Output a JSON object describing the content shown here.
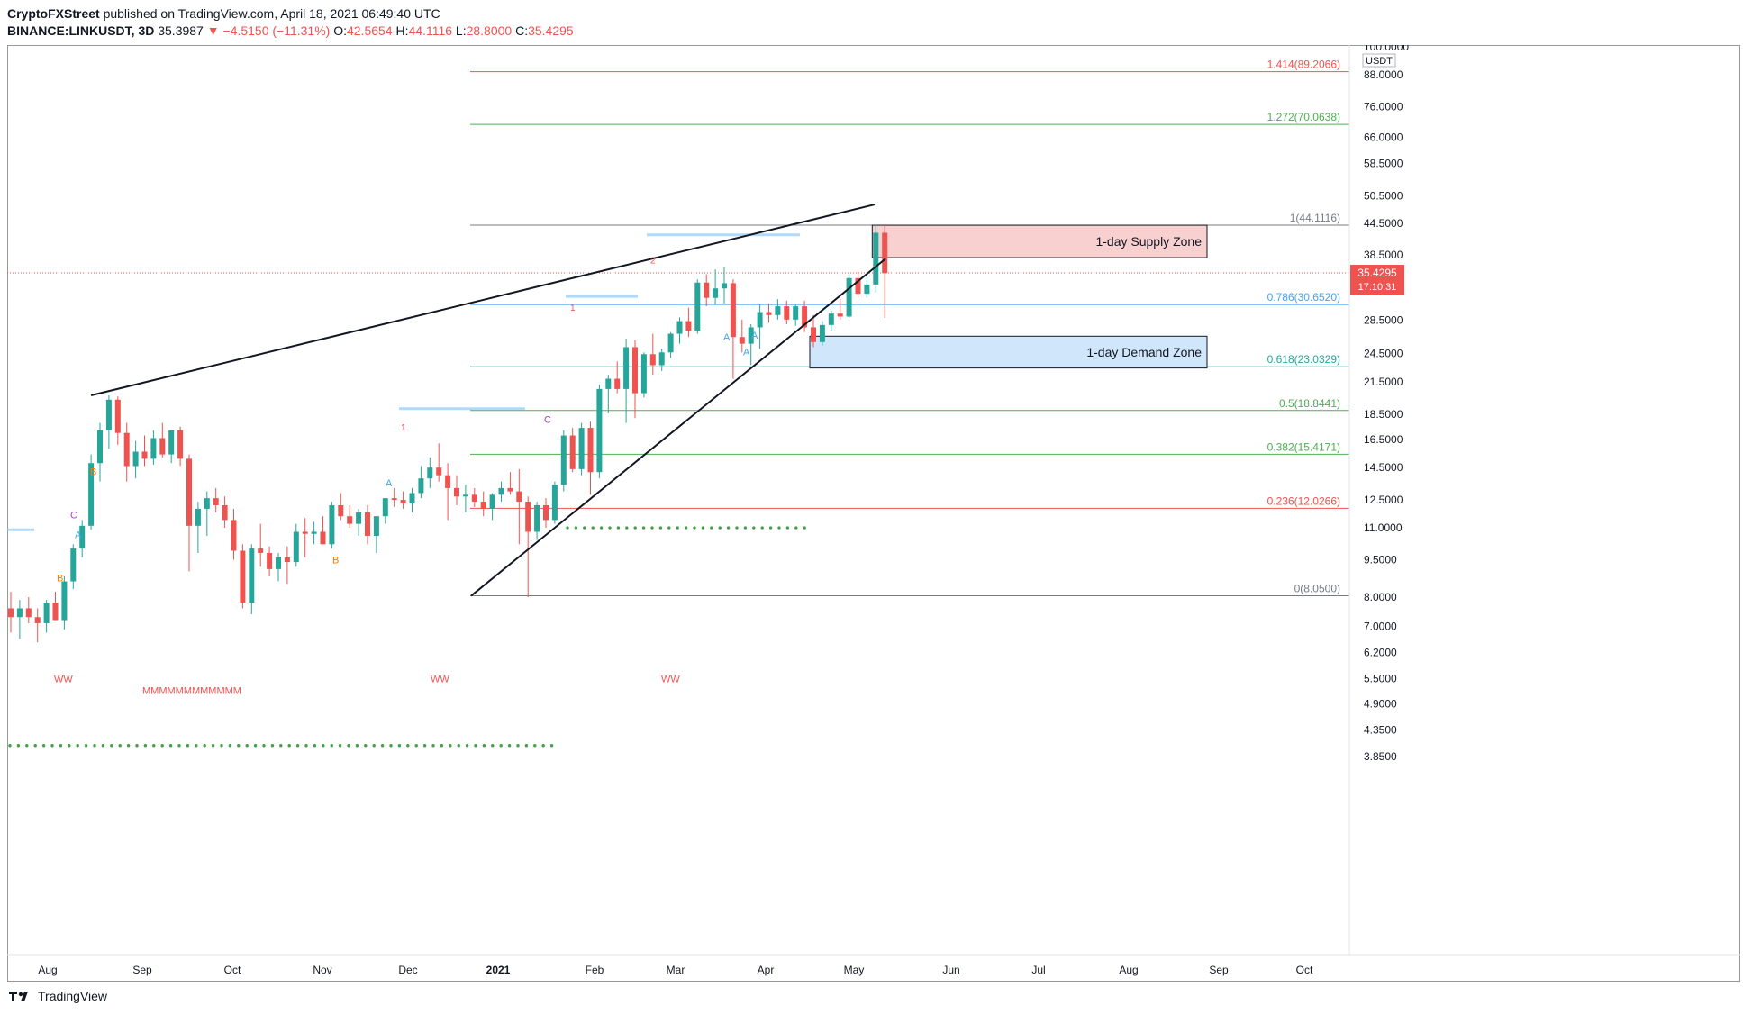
{
  "header": {
    "publisher": "CryptoFXStreet",
    "published_text": "published on TradingView.com, April 18, 2021 06:49:40 UTC",
    "symbol": "BINANCE:LINKUSDT, 3D",
    "last": "35.3987",
    "change": "▼ −4.5150 (−11.31%)",
    "open_label": "O:",
    "open": "42.5654",
    "high_label": "H:",
    "high": "44.1116",
    "low_label": "L:",
    "low": "28.8000",
    "close_label": "C:",
    "close": "35.4295"
  },
  "footer": {
    "brand": "TradingView"
  },
  "colors": {
    "up": "#26a69a",
    "down": "#ef5350",
    "fib_red": "#ef5350",
    "fib_green": "#4caf50",
    "fib_blue": "#42a5f5",
    "fib_gray": "#787b86",
    "supply_fill": "#f8d0d0",
    "demand_fill": "#cfe6fb",
    "dots": "#43a047"
  },
  "chart_data": {
    "type": "candlestick",
    "y_scale": "log",
    "ylim": [
      3.5,
      100
    ],
    "axis_unit": "USDT",
    "y_ticks": [
      "100.0000",
      "88.0000",
      "76.0000",
      "66.0000",
      "58.5000",
      "50.5000",
      "44.5000",
      "38.5000",
      "32.5000",
      "28.5000",
      "24.5000",
      "21.5000",
      "18.5000",
      "16.5000",
      "14.5000",
      "12.5000",
      "11.0000",
      "9.5000",
      "8.0000",
      "7.0000",
      "6.2000",
      "5.5000",
      "4.9000",
      "4.3500",
      "3.8500"
    ],
    "x_labels": [
      "Aug",
      "Sep",
      "Oct",
      "Nov",
      "Dec",
      "2021",
      "Feb",
      "Mar",
      "Apr",
      "May",
      "Jun",
      "Jul",
      "Aug",
      "Sep",
      "Oct"
    ],
    "current_price_tag": "35.4295",
    "countdown_tag": "17:10:31",
    "candles": [
      [
        7.6,
        8.2,
        6.8,
        7.3
      ],
      [
        7.3,
        7.9,
        6.6,
        7.6
      ],
      [
        7.6,
        8.0,
        7.1,
        7.3
      ],
      [
        7.3,
        7.6,
        6.5,
        7.1
      ],
      [
        7.1,
        7.9,
        6.8,
        7.8
      ],
      [
        7.8,
        8.2,
        7.4,
        7.2
      ],
      [
        7.2,
        8.8,
        6.9,
        8.6
      ],
      [
        8.6,
        10.2,
        8.3,
        10.0
      ],
      [
        10.0,
        11.4,
        9.6,
        11.1
      ],
      [
        11.1,
        15.4,
        10.9,
        14.8
      ],
      [
        14.8,
        17.8,
        13.6,
        17.2
      ],
      [
        17.2,
        20.2,
        15.8,
        19.8
      ],
      [
        19.8,
        20.1,
        16.1,
        17.0
      ],
      [
        17.0,
        17.8,
        13.6,
        14.6
      ],
      [
        14.6,
        16.4,
        13.8,
        15.6
      ],
      [
        15.6,
        16.8,
        14.6,
        15.1
      ],
      [
        15.1,
        17.2,
        14.7,
        16.6
      ],
      [
        16.6,
        17.8,
        15.2,
        15.4
      ],
      [
        15.4,
        17.1,
        14.8,
        17.2
      ],
      [
        17.2,
        17.5,
        14.6,
        15.1
      ],
      [
        15.1,
        15.4,
        9.0,
        11.1
      ],
      [
        11.1,
        12.4,
        9.8,
        12.0
      ],
      [
        12.0,
        13.0,
        10.6,
        12.6
      ],
      [
        12.6,
        13.2,
        11.8,
        12.2
      ],
      [
        12.2,
        12.7,
        11.0,
        11.4
      ],
      [
        11.4,
        12.0,
        9.5,
        9.9
      ],
      [
        9.9,
        10.2,
        7.6,
        7.8
      ],
      [
        7.8,
        10.2,
        7.4,
        10.0
      ],
      [
        10.0,
        11.2,
        9.2,
        9.8
      ],
      [
        9.8,
        10.1,
        8.8,
        9.1
      ],
      [
        9.1,
        9.8,
        8.6,
        9.6
      ],
      [
        9.6,
        10.1,
        8.5,
        9.4
      ],
      [
        9.4,
        11.2,
        9.2,
        10.8
      ],
      [
        10.8,
        11.5,
        9.6,
        10.7
      ],
      [
        10.7,
        11.3,
        10.2,
        10.8
      ],
      [
        10.8,
        11.6,
        10.2,
        10.2
      ],
      [
        10.2,
        12.4,
        10.0,
        12.2
      ],
      [
        12.2,
        12.9,
        11.4,
        11.6
      ],
      [
        11.6,
        12.2,
        11.0,
        11.2
      ],
      [
        11.2,
        12.0,
        10.6,
        11.8
      ],
      [
        11.8,
        12.2,
        10.2,
        10.6
      ],
      [
        10.6,
        11.3,
        9.8,
        11.6
      ],
      [
        11.6,
        12.6,
        11.2,
        12.6
      ],
      [
        12.6,
        13.2,
        12.1,
        12.5
      ],
      [
        12.5,
        13.0,
        12.0,
        12.3
      ],
      [
        12.3,
        13.2,
        11.8,
        12.9
      ],
      [
        12.9,
        14.6,
        12.6,
        13.8
      ],
      [
        13.8,
        15.2,
        13.2,
        14.5
      ],
      [
        14.5,
        16.2,
        13.6,
        14.0
      ],
      [
        14.0,
        14.8,
        11.4,
        13.2
      ],
      [
        13.2,
        14.0,
        12.2,
        12.7
      ],
      [
        12.7,
        13.4,
        11.8,
        12.8
      ],
      [
        12.8,
        13.2,
        12.1,
        12.4
      ],
      [
        12.4,
        13.0,
        11.6,
        12.0
      ],
      [
        12.0,
        12.9,
        11.4,
        12.8
      ],
      [
        12.8,
        13.6,
        12.4,
        13.2
      ],
      [
        13.2,
        14.2,
        12.8,
        13.0
      ],
      [
        13.0,
        14.4,
        10.2,
        12.4
      ],
      [
        12.4,
        12.7,
        8.0,
        10.8
      ],
      [
        10.8,
        12.4,
        10.4,
        12.2
      ],
      [
        12.2,
        12.6,
        11.0,
        11.4
      ],
      [
        11.4,
        13.6,
        11.2,
        13.4
      ],
      [
        13.4,
        17.2,
        13.0,
        16.8
      ],
      [
        16.8,
        17.4,
        14.2,
        14.4
      ],
      [
        14.4,
        17.8,
        14.0,
        17.4
      ],
      [
        17.4,
        17.9,
        12.8,
        14.2
      ],
      [
        14.2,
        21.2,
        13.8,
        20.8
      ],
      [
        20.8,
        22.2,
        18.6,
        21.8
      ],
      [
        21.8,
        23.6,
        20.4,
        20.8
      ],
      [
        20.8,
        26.2,
        17.8,
        25.2
      ],
      [
        25.2,
        26.0,
        18.2,
        20.4
      ],
      [
        20.4,
        24.6,
        20.0,
        24.4
      ],
      [
        24.4,
        26.8,
        22.2,
        23.2
      ],
      [
        23.2,
        25.0,
        22.6,
        24.6
      ],
      [
        24.6,
        27.0,
        24.0,
        26.8
      ],
      [
        26.8,
        28.9,
        25.6,
        28.4
      ],
      [
        28.4,
        30.2,
        26.4,
        27.2
      ],
      [
        27.2,
        34.4,
        26.8,
        33.9
      ],
      [
        33.9,
        35.2,
        30.4,
        31.6
      ],
      [
        31.6,
        36.0,
        30.6,
        33.0
      ],
      [
        33.0,
        36.4,
        30.8,
        33.8
      ],
      [
        33.8,
        34.4,
        21.8,
        26.4
      ],
      [
        26.4,
        28.6,
        24.6,
        25.6
      ],
      [
        25.6,
        28.0,
        23.2,
        27.6
      ],
      [
        27.6,
        30.6,
        25.0,
        29.6
      ],
      [
        29.6,
        30.8,
        28.2,
        29.2
      ],
      [
        29.2,
        31.4,
        28.6,
        30.4
      ],
      [
        30.4,
        31.2,
        28.0,
        28.6
      ],
      [
        28.6,
        30.6,
        27.8,
        30.4
      ],
      [
        30.4,
        31.2,
        27.0,
        27.6
      ],
      [
        27.6,
        29.2,
        25.2,
        25.8
      ],
      [
        25.8,
        28.4,
        25.4,
        27.9
      ],
      [
        27.9,
        29.8,
        27.2,
        29.4
      ],
      [
        29.4,
        31.4,
        28.6,
        29.0
      ],
      [
        29.0,
        35.2,
        28.8,
        34.6
      ],
      [
        34.6,
        35.6,
        31.6,
        32.2
      ],
      [
        32.2,
        34.8,
        31.6,
        33.6
      ],
      [
        33.6,
        44.1,
        32.4,
        42.6
      ],
      [
        42.6,
        44.1,
        28.8,
        35.4
      ]
    ],
    "fib_levels": [
      {
        "label": "1.414(89.2066)",
        "value": 89.2066,
        "color": "red"
      },
      {
        "label": "1.272(70.0638)",
        "value": 70.0638,
        "color": "green"
      },
      {
        "label": "1(44.1116)",
        "value": 44.1116,
        "color": "gray"
      },
      {
        "label": "0.786(30.6520)",
        "value": 30.652,
        "color": "blue"
      },
      {
        "label": "0.618(23.0329)",
        "value": 23.0329,
        "color": "teal"
      },
      {
        "label": "0.5(18.8441)",
        "value": 18.8441,
        "color": "green"
      },
      {
        "label": "0.382(15.4171)",
        "value": 15.4171,
        "color": "green"
      },
      {
        "label": "0.236(12.0266)",
        "value": 12.0266,
        "color": "red"
      },
      {
        "label": "0(8.0500)",
        "value": 8.05,
        "color": "gray"
      }
    ],
    "zones": [
      {
        "label": "1-day Supply Zone",
        "top": 44.1,
        "bottom": 38.0
      },
      {
        "label": "1-day Demand Zone",
        "top": 26.5,
        "bottom": 22.9
      }
    ],
    "markers": {
      "ww": [
        "WW",
        "WW",
        "WW"
      ],
      "mm": "MMMMMMMMMMMM",
      "letters": [
        "A",
        "B",
        "C",
        "B",
        "A",
        "C",
        "A",
        "A",
        "B",
        "A"
      ],
      "counts": [
        "1",
        "2",
        "1"
      ]
    }
  }
}
